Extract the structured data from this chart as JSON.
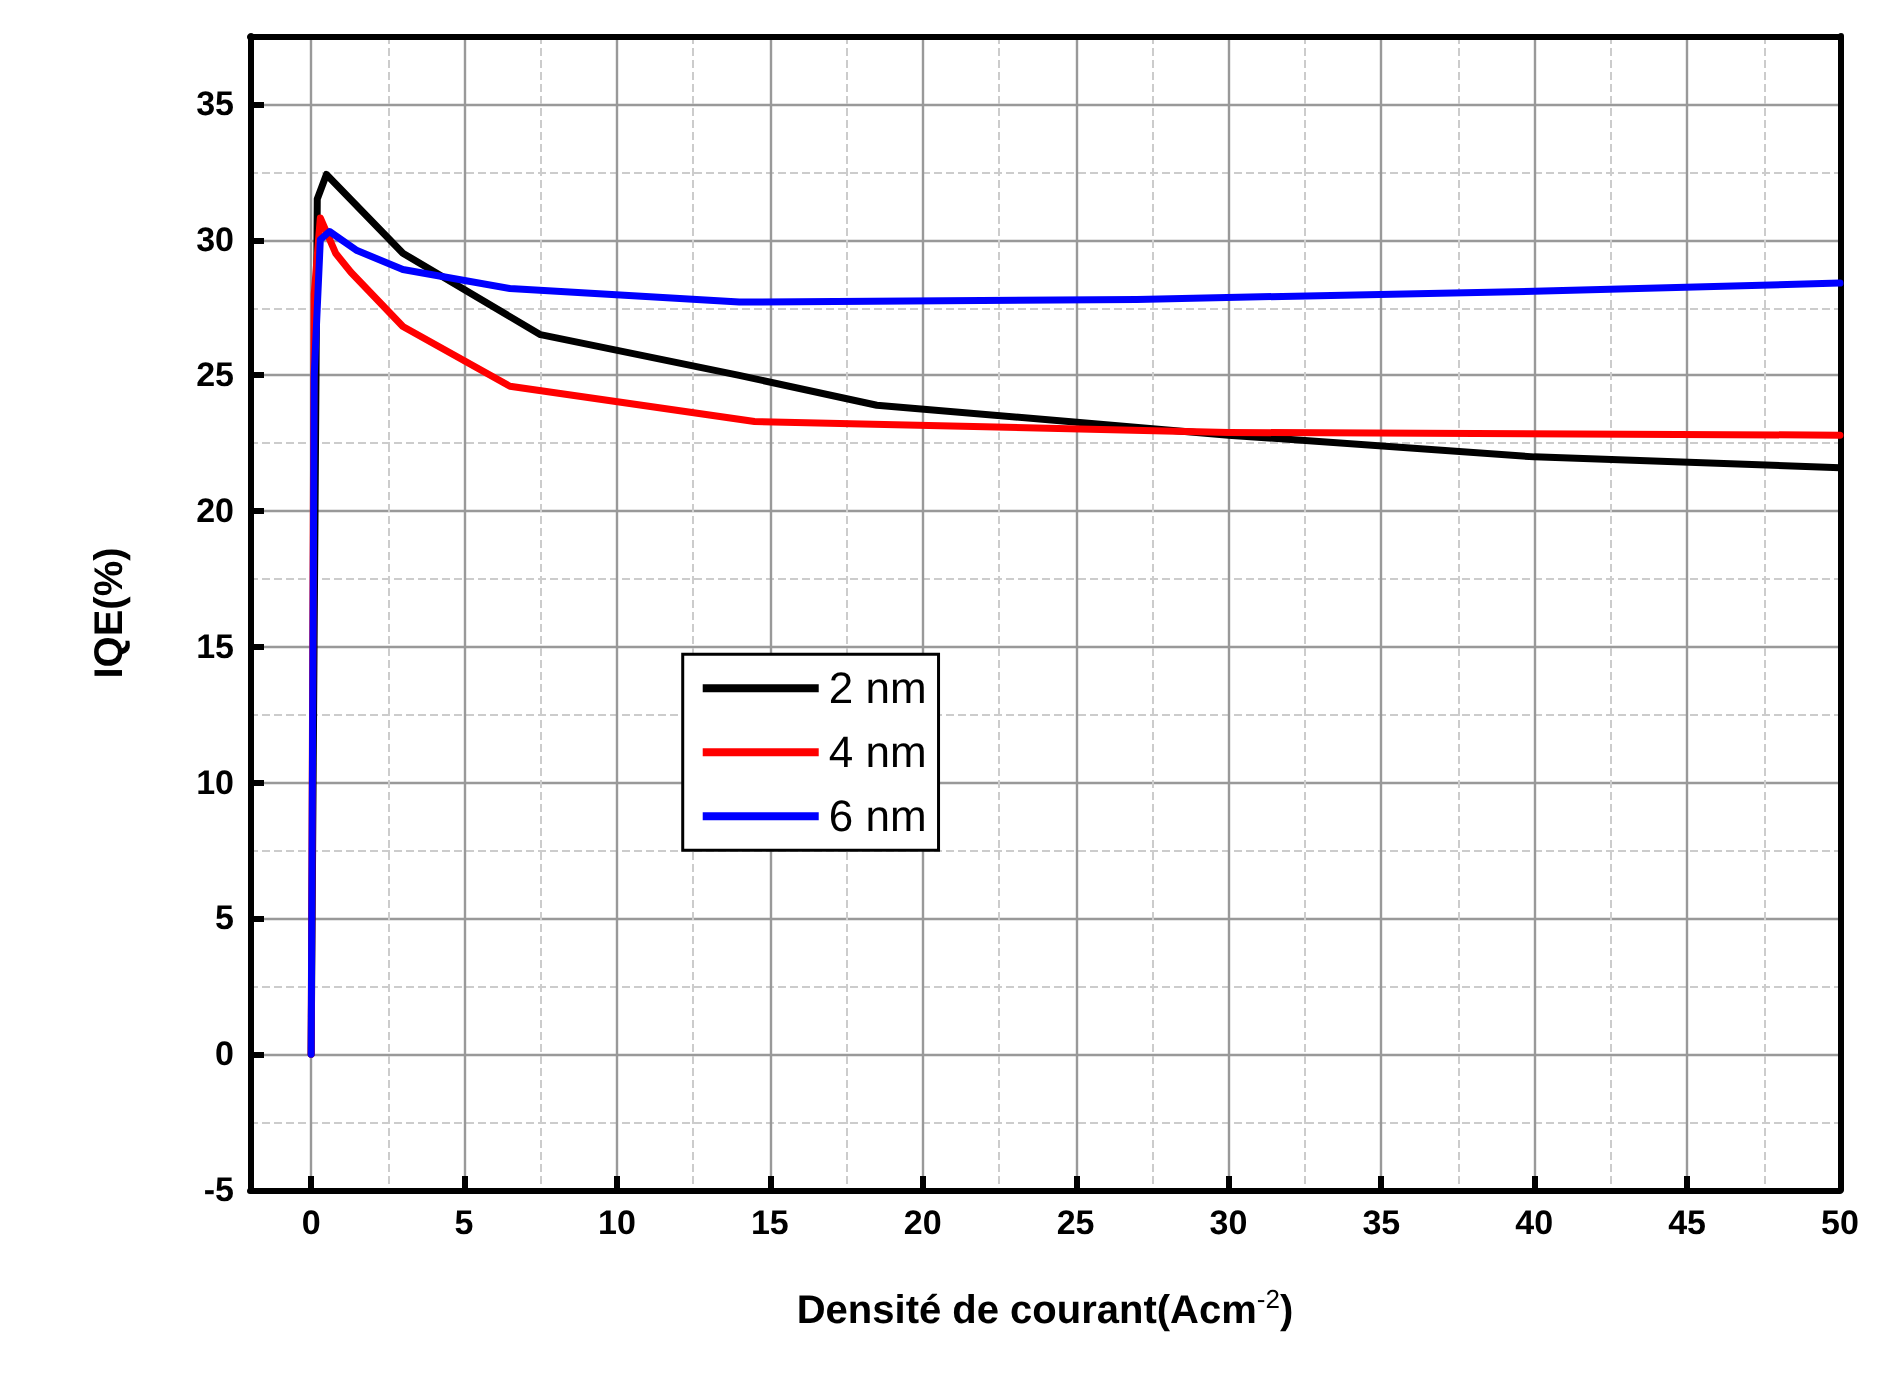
{
  "chart_data": {
    "type": "line",
    "xlabel": "Densité de courant(Acm$^{-2}$)",
    "ylabel": "IQE(%)",
    "xlim": [
      -2,
      50
    ],
    "ylim": [
      -5,
      37.5
    ],
    "xticks": [
      0,
      {
        "value": 2.5,
        "label": null
      },
      5,
      {
        "value": 7.5,
        "label": null
      },
      10,
      {
        "value": 12.5,
        "label": null
      },
      15,
      {
        "value": 17.5,
        "label": null
      },
      20,
      {
        "value": 22.5,
        "label": null
      },
      25,
      {
        "value": 27.5,
        "label": null
      },
      30,
      {
        "value": 32.5,
        "label": null
      },
      35,
      {
        "value": 37.5,
        "label": null
      },
      40,
      {
        "value": 42.5,
        "label": null
      },
      45,
      {
        "value": 47.5,
        "label": null
      },
      50
    ],
    "yticks": [
      -5,
      {
        "value": -2.5,
        "label": null
      },
      0,
      {
        "value": 2.5,
        "label": null
      },
      5,
      {
        "value": 7.5,
        "label": null
      },
      10,
      {
        "value": 12.5,
        "label": null
      },
      15,
      {
        "value": 17.5,
        "label": null
      },
      20,
      {
        "value": 22.5,
        "label": null
      },
      25,
      {
        "value": 27.5,
        "label": null
      },
      30,
      {
        "value": 32.5,
        "label": null
      },
      35
    ],
    "grid": true,
    "legend": "center left",
    "marker": "none",
    "line_style": "solid",
    "series": [
      {
        "name": "2 nm",
        "color": "#000000",
        "x": [
          0,
          0.2,
          0.5,
          3,
          7.5,
          14,
          18.5,
          30,
          40,
          50
        ],
        "values": [
          0,
          31.5,
          32.4,
          29.5,
          26.5,
          25,
          23.9,
          22.8,
          22,
          21.6
        ]
      },
      {
        "name": "4 nm",
        "color": "#ff0000",
        "x": [
          0,
          0.1,
          0.3,
          0.8,
          1.3,
          3,
          6.5,
          14.5,
          30,
          50
        ],
        "values": [
          0,
          28,
          30.8,
          29.5,
          28.8,
          26.8,
          24.6,
          23.3,
          22.9,
          22.8
        ]
      },
      {
        "name": "6 nm",
        "color": "#0000ff",
        "x": [
          0,
          0.1,
          0.3,
          0.6,
          1.5,
          3,
          6.5,
          14,
          27,
          40,
          50
        ],
        "values": [
          0,
          25,
          30,
          30.3,
          29.6,
          28.9,
          28.2,
          27.7,
          27.8,
          28.1,
          28.4
        ]
      }
    ]
  }
}
